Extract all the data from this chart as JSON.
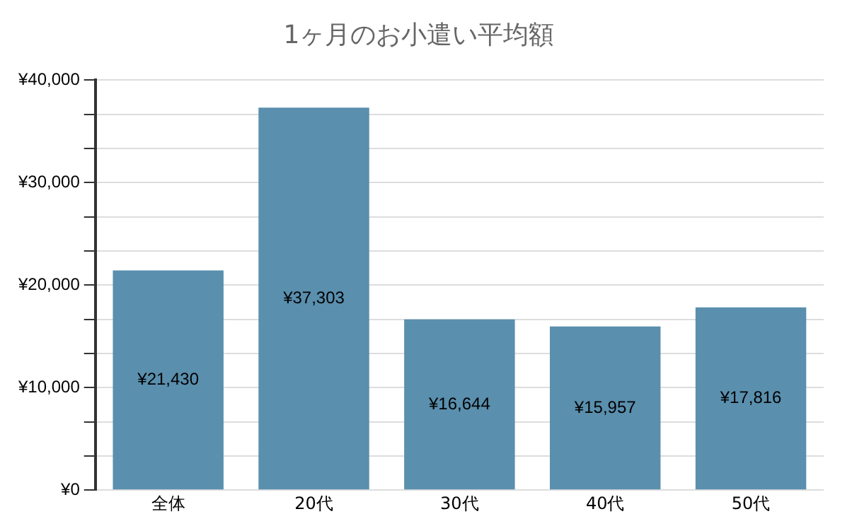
{
  "chart_data": {
    "type": "bar",
    "title": "1ヶ月のお小遣い平均額",
    "categories": [
      "全体",
      "20代",
      "30代",
      "40代",
      "50代"
    ],
    "values": [
      21430,
      37303,
      16644,
      15957,
      17816
    ],
    "value_labels": [
      "¥21,430",
      "¥37,303",
      "¥16,644",
      "¥15,957",
      "¥17,816"
    ],
    "color": "#5a8fae",
    "ylim": [
      0,
      40000
    ],
    "yticks": [
      {
        "value": 0,
        "label": "¥0"
      },
      {
        "value": 3333,
        "label": null
      },
      {
        "value": 6667,
        "label": null
      },
      {
        "value": 10000,
        "label": "¥10,000"
      },
      {
        "value": 13333,
        "label": null
      },
      {
        "value": 16667,
        "label": null
      },
      {
        "value": 20000,
        "label": "¥20,000"
      },
      {
        "value": 23333,
        "label": null
      },
      {
        "value": 26667,
        "label": null
      },
      {
        "value": 30000,
        "label": "¥30,000"
      },
      {
        "value": 33333,
        "label": null
      },
      {
        "value": 36667,
        "label": null
      },
      {
        "value": 40000,
        "label": "¥40,000"
      }
    ],
    "grid": "y"
  }
}
